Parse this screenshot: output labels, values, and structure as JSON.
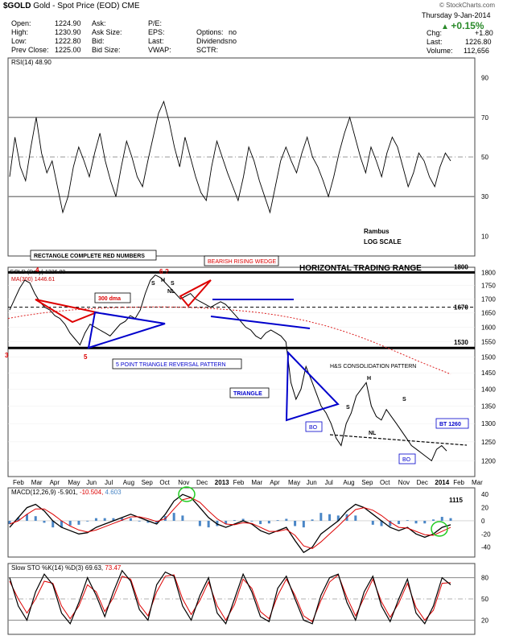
{
  "header": {
    "symbol": "$GOLD",
    "name": "Gold - Spot Price (EOD)",
    "exchange": "CME",
    "watermark": "© StockCharts.com",
    "date": "Thursday   9-Jan-2014",
    "change_pct": "+0.15%",
    "fields": [
      {
        "label": "Open:",
        "value": "1224.90"
      },
      {
        "label": "High:",
        "value": "1230.90"
      },
      {
        "label": "Low:",
        "value": "1222.80"
      },
      {
        "label": "Prev Close:",
        "value": "1225.00"
      },
      {
        "label": "Ask:",
        "value": ""
      },
      {
        "label": "Ask Size:",
        "value": ""
      },
      {
        "label": "Bid:",
        "value": ""
      },
      {
        "label": "Bid Size:",
        "value": ""
      },
      {
        "label": "P/E:",
        "value": ""
      },
      {
        "label": "EPS:",
        "value": ""
      },
      {
        "label": "Last:",
        "value": ""
      },
      {
        "label": "VWAP:",
        "value": ""
      },
      {
        "label": "Options:",
        "value": "no"
      },
      {
        "label": "Dividends:",
        "value": "no"
      },
      {
        "label": "SCTR:",
        "value": ""
      }
    ],
    "right_fields": [
      {
        "label": "Chg:",
        "value": "+1.80"
      },
      {
        "label": "Last:",
        "value": "1226.80"
      },
      {
        "label": "Volume:",
        "value": "112,656"
      }
    ]
  },
  "chart_data": [
    {
      "type": "line",
      "panel": "rsi",
      "title": "RSI(14) 48.90",
      "yticks": [
        10,
        30,
        50,
        70,
        90
      ],
      "ylim": [
        0,
        100
      ],
      "annotations": [
        "Rambus",
        "LOG SCALE"
      ],
      "series": [
        {
          "values": [
            40,
            60,
            45,
            38,
            55,
            70,
            52,
            42,
            48,
            35,
            22,
            30,
            45,
            55,
            48,
            40,
            52,
            62,
            48,
            38,
            30,
            45,
            58,
            50,
            40,
            35,
            48,
            60,
            72,
            78,
            68,
            55,
            45,
            60,
            50,
            40,
            32,
            28,
            45,
            58,
            50,
            42,
            35,
            28,
            40,
            55,
            48,
            38,
            30,
            22,
            35,
            48,
            55,
            48,
            42,
            52,
            60,
            50,
            45,
            38,
            30,
            40,
            52,
            62,
            70,
            60,
            50,
            42,
            55,
            48,
            40,
            52,
            60,
            55,
            45,
            35,
            42,
            52,
            48,
            40,
            35,
            45,
            52,
            48
          ]
        }
      ]
    },
    {
      "type": "line",
      "panel": "price",
      "title": "GOLD (Daily) 1226.80",
      "ma_label": "MA(300) 1446.61",
      "scale": "log",
      "yticks": [
        1200,
        1250,
        1300,
        1350,
        1400,
        1450,
        1500,
        1550,
        1600,
        1650,
        1700,
        1750,
        1800
      ],
      "ylim": [
        1160,
        1820
      ],
      "xticks": [
        "Feb",
        "Mar",
        "Apr",
        "May",
        "Jun",
        "Jul",
        "Aug",
        "Sep",
        "Oct",
        "Nov",
        "Dec",
        "2013",
        "Feb",
        "Mar",
        "Apr",
        "May",
        "Jun",
        "Jul",
        "Aug",
        "Sep",
        "Oct",
        "Nov",
        "Dec",
        "2014",
        "Feb",
        "Mar"
      ],
      "horizontal_levels": [
        {
          "value": 1800,
          "label": "1800"
        },
        {
          "value": 1670,
          "label": "1670"
        },
        {
          "value": 1530,
          "label": "1530"
        }
      ],
      "annotations": [
        "HORIZONTAL TRADING RANGE",
        "RECTANGLE COMPLETE RED NUMBERS",
        "BEARISH RISING WEDGE",
        "300 dma",
        "5 POINT TRIANGLE REVERSAL PATTERN",
        "H&S CONSOLIDATION PATTERN",
        "TRIANGLE",
        "BO",
        "BO",
        "BT 1260",
        "S",
        "H",
        "S",
        "NL",
        "S",
        "H",
        "S",
        "NL",
        "4",
        "6",
        "?",
        "3",
        "5"
      ],
      "series": [
        {
          "name": "Price",
          "values": [
            1660,
            1700,
            1740,
            1770,
            1760,
            1720,
            1690,
            1670,
            1660,
            1640,
            1630,
            1610,
            1580,
            1560,
            1540,
            1580,
            1610,
            1600,
            1590,
            1580,
            1570,
            1590,
            1610,
            1620,
            1640,
            1630,
            1660,
            1720,
            1770,
            1790,
            1780,
            1760,
            1740,
            1720,
            1700,
            1710,
            1720,
            1700,
            1690,
            1680,
            1670,
            1680,
            1690,
            1680,
            1660,
            1640,
            1620,
            1600,
            1590,
            1570,
            1560,
            1580,
            1590,
            1580,
            1570,
            1550,
            1420,
            1370,
            1400,
            1470,
            1430,
            1390,
            1350,
            1330,
            1300,
            1260,
            1240,
            1300,
            1330,
            1380,
            1400,
            1420,
            1350,
            1320,
            1310,
            1340,
            1320,
            1300,
            1280,
            1260,
            1240,
            1230,
            1220,
            1210,
            1200,
            1230,
            1240,
            1226
          ]
        },
        {
          "name": "MA(300)",
          "values": [
            1630,
            1640,
            1648,
            1655,
            1660,
            1664,
            1667,
            1669,
            1670,
            1671,
            1671,
            1670,
            1668,
            1665,
            1661,
            1656,
            1650,
            1642,
            1632,
            1620,
            1606,
            1590,
            1572,
            1552,
            1530,
            1508,
            1486,
            1466,
            1446
          ]
        }
      ]
    },
    {
      "type": "line",
      "panel": "macd",
      "title": "MACD(12,26,9)",
      "macd_value": "-5.901",
      "signal_value": "-10.504",
      "hist_value": "4.603",
      "yticks": [
        -40,
        -20,
        0,
        20,
        40
      ],
      "ylim": [
        -55,
        50
      ],
      "annotations": [
        "1115"
      ],
      "series": [
        {
          "name": "MACD",
          "values": [
            -10,
            5,
            20,
            25,
            15,
            0,
            -10,
            -15,
            -20,
            -18,
            -10,
            -5,
            0,
            5,
            10,
            5,
            0,
            -5,
            10,
            30,
            40,
            35,
            20,
            5,
            -5,
            -10,
            -5,
            0,
            -5,
            -15,
            -20,
            -15,
            -10,
            -30,
            -48,
            -40,
            -20,
            -10,
            0,
            15,
            25,
            20,
            10,
            0,
            -10,
            -15,
            -10,
            -20,
            -25,
            -20,
            -10,
            -6
          ]
        },
        {
          "name": "Signal",
          "values": [
            -5,
            0,
            10,
            18,
            18,
            10,
            0,
            -8,
            -14,
            -17,
            -14,
            -9,
            -4,
            1,
            6,
            6,
            3,
            -1,
            3,
            18,
            32,
            35,
            28,
            15,
            3,
            -5,
            -6,
            -3,
            -4,
            -10,
            -16,
            -16,
            -13,
            -22,
            -38,
            -42,
            -32,
            -20,
            -8,
            5,
            17,
            20,
            16,
            8,
            -2,
            -10,
            -11,
            -16,
            -21,
            -22,
            -16,
            -10
          ]
        }
      ]
    },
    {
      "type": "line",
      "panel": "sto",
      "title": "Slow STO %K(14) %D(3)",
      "k_value": "69.63",
      "d_value": "73.47",
      "yticks": [
        20,
        50,
        80
      ],
      "ylim": [
        0,
        100
      ],
      "series": [
        {
          "name": "%K",
          "values": [
            80,
            40,
            20,
            60,
            85,
            70,
            30,
            15,
            45,
            80,
            55,
            25,
            60,
            90,
            75,
            35,
            20,
            70,
            88,
            82,
            40,
            20,
            55,
            80,
            30,
            15,
            50,
            85,
            60,
            25,
            18,
            65,
            82,
            50,
            20,
            15,
            55,
            80,
            85,
            45,
            20,
            60,
            82,
            40,
            18,
            50,
            78,
            30,
            15,
            40,
            80,
            70
          ]
        },
        {
          "name": "%D",
          "values": [
            75,
            50,
            30,
            50,
            75,
            72,
            40,
            22,
            40,
            70,
            60,
            32,
            52,
            82,
            78,
            42,
            26,
            60,
            82,
            84,
            50,
            28,
            48,
            74,
            40,
            20,
            42,
            78,
            65,
            32,
            22,
            55,
            78,
            55,
            26,
            18,
            48,
            74,
            84,
            52,
            26,
            52,
            78,
            46,
            24,
            44,
            72,
            38,
            20,
            34,
            72,
            73
          ]
        }
      ]
    }
  ]
}
